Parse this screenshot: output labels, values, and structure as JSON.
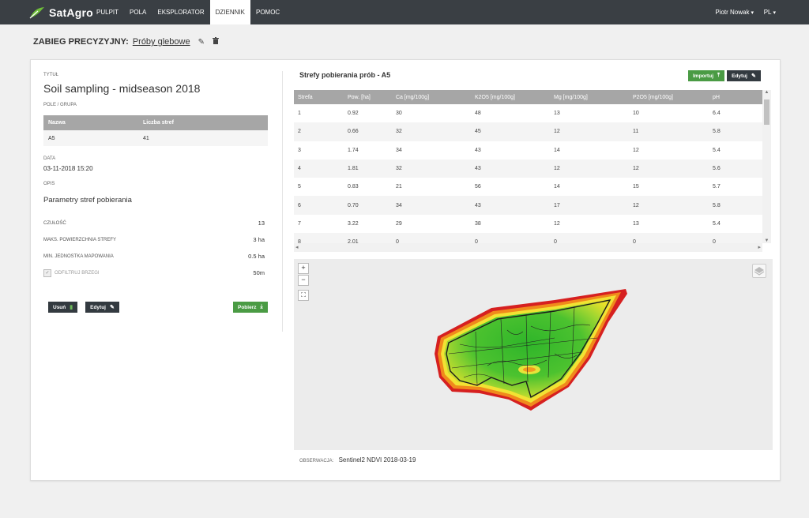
{
  "app": {
    "logo_text": "SatAgro"
  },
  "nav": {
    "items": [
      "PULPIT",
      "POLA",
      "EKSPLORATOR",
      "DZIENNIK",
      "POMOC"
    ],
    "active_index": 3
  },
  "user": {
    "name": "Piotr Nowak",
    "lang": "PL"
  },
  "page": {
    "label": "ZABIEG PRECYZYJNY:",
    "link": "Próby glebowe"
  },
  "left": {
    "title_label": "TYTUŁ",
    "title": "Soil sampling - midseason 2018",
    "group_label": "POLE / GRUPA",
    "group_headers": [
      "Nazwa",
      "Liczba stref"
    ],
    "group_row": [
      "A5",
      "41"
    ],
    "date_label": "DATA",
    "date": "03-11-2018 15:20",
    "desc_label": "OPIS",
    "params_title": "Parametry stref pobierania",
    "params": [
      {
        "k": "CZUŁOŚĆ",
        "v": "13"
      },
      {
        "k": "MAKS. POWIERZCHNIA STREFY",
        "v": "3 ha"
      },
      {
        "k": "MIN. JEDNOSTKA MAPOWANIA",
        "v": "0.5 ha"
      }
    ],
    "filter_label": "ODFILTRUJ BRZEGI",
    "filter_value": "50m",
    "buttons": {
      "delete": "Usuń",
      "edit": "Edytuj",
      "download": "Pobierz"
    }
  },
  "zones": {
    "title": "Strefy pobierania prób - A5",
    "import_label": "Importuj",
    "edit_label": "Edytuj",
    "headers": [
      "Strefa",
      "Pow. [ha]",
      "Ca [mg/100g]",
      "K2O5 [mg/100g]",
      "Mg [mg/100g]",
      "P2O5 [mg/100g]",
      "pH"
    ],
    "rows": [
      [
        "1",
        "0.92",
        "30",
        "48",
        "13",
        "10",
        "6.4"
      ],
      [
        "2",
        "0.66",
        "32",
        "45",
        "12",
        "11",
        "5.8"
      ],
      [
        "3",
        "1.74",
        "34",
        "43",
        "14",
        "12",
        "5.4"
      ],
      [
        "4",
        "1.81",
        "32",
        "43",
        "12",
        "12",
        "5.6"
      ],
      [
        "5",
        "0.83",
        "21",
        "56",
        "14",
        "15",
        "5.7"
      ],
      [
        "6",
        "0.70",
        "34",
        "43",
        "17",
        "12",
        "5.8"
      ],
      [
        "7",
        "3.22",
        "29",
        "38",
        "12",
        "13",
        "5.4"
      ],
      [
        "8",
        "2.01",
        "0",
        "0",
        "0",
        "0",
        "0"
      ]
    ]
  },
  "map": {
    "obs_label": "OBSERWACJA:",
    "obs_value": "Sentinel2 NDVI 2018-03-19"
  },
  "colors": {
    "topbar": "#3a3f44",
    "green_btn": "#4a9b44",
    "dark_btn": "#333a40",
    "header_gray": "#a6a6a6"
  }
}
